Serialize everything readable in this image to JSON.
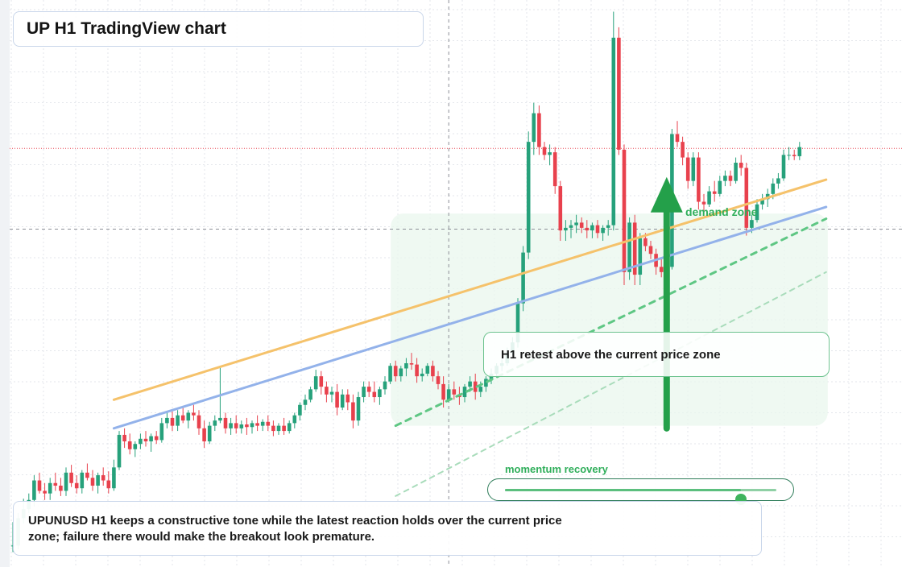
{
  "header": {
    "title": "UP H1 TradingView chart"
  },
  "chart_data": {
    "type": "candlestick",
    "symbol": "UPUNUSD",
    "timeframe": "H1",
    "candles": [
      [
        1.7,
        1.88,
        1.65,
        1.7
      ],
      [
        1.7,
        1.95,
        1.67,
        1.91
      ],
      [
        1.91,
        2.06,
        1.87,
        1.98
      ],
      [
        1.98,
        2.1,
        1.95,
        2.05
      ],
      [
        2.05,
        2.24,
        2.0,
        2.2
      ],
      [
        2.2,
        2.26,
        2.1,
        2.12
      ],
      [
        2.12,
        2.18,
        2.05,
        2.1
      ],
      [
        2.1,
        2.22,
        2.05,
        2.18
      ],
      [
        2.18,
        2.26,
        2.12,
        2.16
      ],
      [
        2.16,
        2.22,
        2.08,
        2.12
      ],
      [
        2.12,
        2.3,
        2.08,
        2.26
      ],
      [
        2.26,
        2.32,
        2.15,
        2.18
      ],
      [
        2.18,
        2.24,
        2.1,
        2.14
      ],
      [
        2.14,
        2.28,
        2.1,
        2.26
      ],
      [
        2.26,
        2.33,
        2.2,
        2.22
      ],
      [
        2.22,
        2.28,
        2.12,
        2.16
      ],
      [
        2.16,
        2.26,
        2.1,
        2.24
      ],
      [
        2.24,
        2.3,
        2.16,
        2.2
      ],
      [
        2.2,
        2.27,
        2.1,
        2.14
      ],
      [
        2.14,
        2.36,
        2.12,
        2.3
      ],
      [
        2.3,
        2.58,
        2.28,
        2.55
      ],
      [
        2.55,
        2.6,
        2.45,
        2.5
      ],
      [
        2.5,
        2.56,
        2.4,
        2.44
      ],
      [
        2.44,
        2.5,
        2.38,
        2.48
      ],
      [
        2.48,
        2.56,
        2.44,
        2.52
      ],
      [
        2.52,
        2.58,
        2.46,
        2.5
      ],
      [
        2.5,
        2.56,
        2.42,
        2.54
      ],
      [
        2.54,
        2.58,
        2.48,
        2.51
      ],
      [
        2.51,
        2.68,
        2.49,
        2.64
      ],
      [
        2.64,
        2.72,
        2.6,
        2.68
      ],
      [
        2.68,
        2.73,
        2.58,
        2.62
      ],
      [
        2.62,
        2.74,
        2.58,
        2.7
      ],
      [
        2.7,
        2.76,
        2.64,
        2.66
      ],
      [
        2.66,
        2.74,
        2.6,
        2.72
      ],
      [
        2.72,
        2.78,
        2.66,
        2.7
      ],
      [
        2.7,
        2.74,
        2.55,
        2.6
      ],
      [
        2.6,
        2.66,
        2.45,
        2.5
      ],
      [
        2.5,
        2.65,
        2.48,
        2.62
      ],
      [
        2.62,
        2.7,
        2.58,
        2.66
      ],
      [
        2.66,
        3.08,
        2.64,
        2.68
      ],
      [
        2.68,
        2.72,
        2.56,
        2.6
      ],
      [
        2.6,
        2.68,
        2.55,
        2.64
      ],
      [
        2.64,
        2.7,
        2.56,
        2.6
      ],
      [
        2.6,
        2.66,
        2.56,
        2.63
      ],
      [
        2.63,
        2.68,
        2.55,
        2.61
      ],
      [
        2.61,
        2.66,
        2.56,
        2.64
      ],
      [
        2.64,
        2.7,
        2.58,
        2.62
      ],
      [
        2.62,
        2.67,
        2.58,
        2.65
      ],
      [
        2.65,
        2.7,
        2.58,
        2.62
      ],
      [
        2.62,
        2.66,
        2.54,
        2.58
      ],
      [
        2.58,
        2.64,
        2.55,
        2.62
      ],
      [
        2.62,
        2.68,
        2.55,
        2.58
      ],
      [
        2.58,
        2.66,
        2.56,
        2.64
      ],
      [
        2.64,
        2.72,
        2.6,
        2.7
      ],
      [
        2.7,
        2.8,
        2.66,
        2.78
      ],
      [
        2.78,
        2.86,
        2.74,
        2.82
      ],
      [
        2.82,
        2.92,
        2.8,
        2.9
      ],
      [
        2.9,
        3.05,
        2.88,
        3.0
      ],
      [
        3.0,
        3.04,
        2.86,
        2.92
      ],
      [
        2.92,
        2.96,
        2.8,
        2.86
      ],
      [
        2.86,
        2.92,
        2.8,
        2.88
      ],
      [
        2.88,
        2.94,
        2.7,
        2.76
      ],
      [
        2.76,
        2.9,
        2.74,
        2.86
      ],
      [
        2.86,
        2.9,
        2.74,
        2.8
      ],
      [
        2.8,
        2.86,
        2.6,
        2.66
      ],
      [
        2.66,
        2.88,
        2.62,
        2.84
      ],
      [
        2.84,
        2.96,
        2.8,
        2.92
      ],
      [
        2.92,
        2.96,
        2.84,
        2.88
      ],
      [
        2.88,
        2.96,
        2.8,
        2.84
      ],
      [
        2.84,
        2.92,
        2.78,
        2.9
      ],
      [
        2.9,
        3.0,
        2.86,
        2.96
      ],
      [
        2.96,
        3.1,
        2.94,
        3.08
      ],
      [
        3.08,
        3.12,
        2.96,
        3.0
      ],
      [
        3.0,
        3.08,
        2.96,
        3.06
      ],
      [
        3.06,
        3.14,
        3.0,
        3.1
      ],
      [
        3.1,
        3.18,
        3.05,
        3.09
      ],
      [
        3.09,
        3.14,
        2.95,
        3.0
      ],
      [
        3.0,
        3.06,
        2.96,
        3.02
      ],
      [
        3.02,
        3.1,
        3.0,
        3.08
      ],
      [
        3.08,
        3.12,
        2.96,
        3.0
      ],
      [
        3.0,
        3.04,
        2.9,
        2.94
      ],
      [
        2.94,
        3.0,
        2.76,
        2.82
      ],
      [
        2.82,
        2.94,
        2.8,
        2.9
      ],
      [
        2.9,
        2.96,
        2.82,
        2.86
      ],
      [
        2.86,
        2.92,
        2.78,
        2.84
      ],
      [
        2.84,
        2.94,
        2.8,
        2.92
      ],
      [
        2.92,
        3.0,
        2.88,
        2.96
      ],
      [
        2.96,
        3.02,
        2.82,
        2.88
      ],
      [
        2.88,
        2.96,
        2.84,
        2.92
      ],
      [
        2.92,
        3.0,
        2.88,
        2.98
      ],
      [
        2.98,
        3.06,
        2.94,
        3.02
      ],
      [
        3.02,
        3.1,
        3.0,
        3.08
      ],
      [
        3.08,
        3.14,
        3.04,
        3.1
      ],
      [
        3.1,
        3.22,
        3.08,
        3.18
      ],
      [
        3.18,
        3.3,
        3.16,
        3.26
      ],
      [
        3.26,
        3.6,
        3.22,
        3.56
      ],
      [
        3.56,
        4.0,
        3.5,
        3.95
      ],
      [
        3.95,
        4.88,
        3.9,
        4.8
      ],
      [
        4.8,
        5.1,
        4.7,
        5.02
      ],
      [
        5.02,
        5.08,
        4.7,
        4.76
      ],
      [
        4.76,
        4.8,
        4.66,
        4.7
      ],
      [
        4.7,
        4.78,
        4.62,
        4.72
      ],
      [
        4.72,
        4.76,
        4.4,
        4.46
      ],
      [
        4.46,
        4.5,
        4.04,
        4.12
      ],
      [
        4.12,
        4.2,
        4.04,
        4.14
      ],
      [
        4.14,
        4.2,
        4.06,
        4.16
      ],
      [
        4.16,
        4.24,
        4.1,
        4.18
      ],
      [
        4.18,
        4.22,
        4.1,
        4.14
      ],
      [
        4.14,
        4.2,
        4.06,
        4.12
      ],
      [
        4.12,
        4.18,
        4.06,
        4.16
      ],
      [
        4.16,
        4.2,
        4.06,
        4.1
      ],
      [
        4.1,
        4.16,
        4.04,
        4.14
      ],
      [
        4.14,
        4.2,
        4.08,
        4.16
      ],
      [
        4.16,
        5.8,
        4.12,
        5.6
      ],
      [
        5.6,
        5.68,
        4.7,
        4.74
      ],
      [
        4.74,
        4.78,
        3.7,
        3.8
      ],
      [
        3.8,
        4.22,
        3.74,
        4.18
      ],
      [
        4.18,
        4.24,
        3.7,
        3.78
      ],
      [
        3.78,
        4.1,
        3.7,
        4.06
      ],
      [
        4.06,
        4.1,
        3.96,
        4.0
      ],
      [
        4.0,
        4.04,
        3.9,
        3.94
      ],
      [
        3.94,
        3.98,
        3.78,
        3.84
      ],
      [
        3.84,
        3.9,
        3.76,
        3.8
      ],
      [
        3.8,
        3.88,
        3.76,
        3.84
      ],
      [
        3.84,
        4.9,
        3.82,
        4.86
      ],
      [
        4.86,
        4.96,
        4.76,
        4.8
      ],
      [
        4.8,
        4.84,
        4.62,
        4.68
      ],
      [
        4.68,
        4.72,
        4.44,
        4.5
      ],
      [
        4.5,
        4.72,
        4.46,
        4.68
      ],
      [
        4.68,
        4.72,
        4.28,
        4.34
      ],
      [
        4.34,
        4.4,
        4.26,
        4.32
      ],
      [
        4.32,
        4.46,
        4.3,
        4.42
      ],
      [
        4.42,
        4.5,
        4.34,
        4.4
      ],
      [
        4.4,
        4.54,
        4.38,
        4.5
      ],
      [
        4.5,
        4.58,
        4.46,
        4.54
      ],
      [
        4.54,
        4.58,
        4.46,
        4.5
      ],
      [
        4.5,
        4.68,
        4.48,
        4.64
      ],
      [
        4.64,
        4.7,
        4.54,
        4.6
      ],
      [
        4.6,
        4.64,
        4.08,
        4.14
      ],
      [
        4.14,
        4.24,
        4.1,
        4.2
      ],
      [
        4.2,
        4.36,
        4.18,
        4.32
      ],
      [
        4.32,
        4.4,
        4.28,
        4.36
      ],
      [
        4.36,
        4.44,
        4.3,
        4.4
      ],
      [
        4.4,
        4.52,
        4.36,
        4.48
      ],
      [
        4.48,
        4.56,
        4.44,
        4.52
      ],
      [
        4.52,
        4.74,
        4.5,
        4.7
      ],
      [
        4.7,
        4.76,
        4.66,
        4.7
      ],
      [
        4.7,
        4.74,
        4.66,
        4.69
      ],
      [
        4.69,
        4.8,
        4.66,
        4.76
      ]
    ],
    "y_range": [
      1.56,
      5.84
    ],
    "current_price": 4.75,
    "up_color": "#26a17b",
    "down_color": "#e8414d",
    "trendlines": [
      {
        "color": "#f5c26b",
        "from": [
          19,
          2.82
        ],
        "to": [
          153,
          4.51
        ]
      },
      {
        "color": "#93b2ea",
        "from": [
          19,
          2.6
        ],
        "to": [
          153,
          4.3
        ]
      },
      {
        "color": "#5fc784",
        "from": [
          72,
          2.62
        ],
        "to": [
          153,
          4.21
        ],
        "dashed": true
      },
      {
        "color": "#a9dcbb",
        "from": [
          72,
          2.08
        ],
        "to": [
          153,
          3.8
        ],
        "dashed": true
      }
    ],
    "demand_zone": {
      "label": "demand zone",
      "from_candle": 72,
      "to_candle": 153,
      "top": 4.25,
      "bottom": 2.62,
      "color": "#eaf7ee"
    },
    "crosshair": {
      "candle": 82,
      "price": 4.13
    },
    "arrow": {
      "color": "#24a04a",
      "candle": 123,
      "from_price": 2.6,
      "to_price": 4.53
    },
    "annotation": "H1 retest above the current price zone",
    "momentum": {
      "label": "momentum recovery",
      "value": 0.87
    }
  },
  "commentary": "UPUNUSD H1 keeps a constructive tone while the latest reaction holds over the current price zone; failure there would make the breakout look premature."
}
